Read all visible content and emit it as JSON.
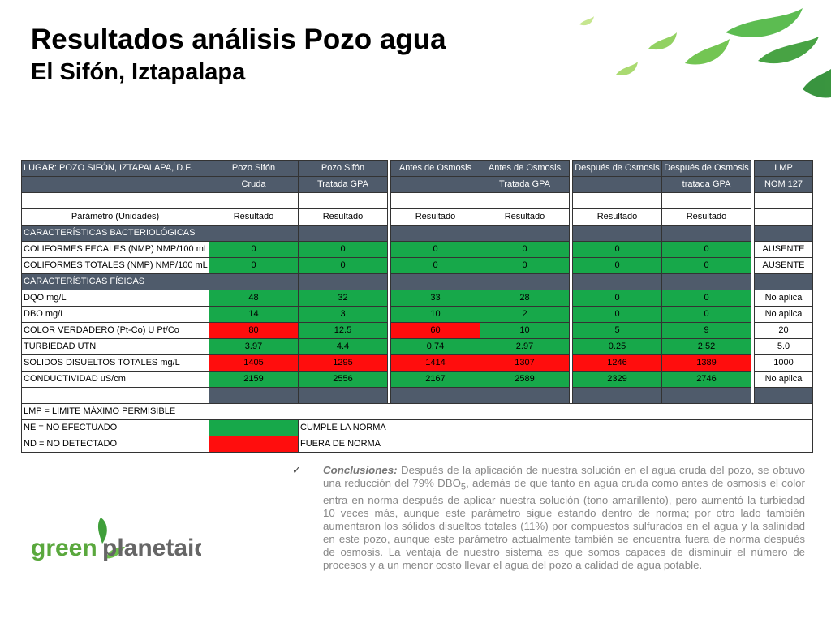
{
  "slide": {
    "title": "Resultados análisis Pozo agua",
    "subtitle": "El Sifón, Iztapalapa"
  },
  "table": {
    "header": {
      "location": "LUGAR: POZO SIFÓN, IZTAPALAPA, D.F.",
      "cols": [
        "Pozo Sifón",
        "Pozo Sifón",
        "Antes de Osmosis",
        "Antes de Osmosis",
        "Después de Osmosis",
        "Después de Osmosis",
        "LMP"
      ],
      "sub": [
        "Cruda",
        "Tratada GPA",
        "",
        "Tratada GPA",
        "",
        "tratada GPA",
        "NOM 127"
      ],
      "param_label": "Parámetro (Unidades)",
      "result_label": "Resultado"
    },
    "sections": {
      "bact": "CARACTERÍSTICAS BACTERIOLÓGICAS",
      "fis": "CARACTERÍSTICAS FÍSICAS"
    },
    "rows": [
      {
        "param": "COLIFORMES FECALES (NMP) NMP/100 mL",
        "values": [
          "0",
          "0",
          "0",
          "0",
          "0",
          "0"
        ],
        "status": [
          "g",
          "g",
          "g",
          "g",
          "g",
          "g"
        ],
        "lmp": "AUSENTE"
      },
      {
        "param": "COLIFORMES TOTALES (NMP) NMP/100 mL",
        "values": [
          "0",
          "0",
          "0",
          "0",
          "0",
          "0"
        ],
        "status": [
          "g",
          "g",
          "g",
          "g",
          "g",
          "g"
        ],
        "lmp": "AUSENTE"
      },
      {
        "param": "DQO mg/L",
        "values": [
          "48",
          "32",
          "33",
          "28",
          "0",
          "0"
        ],
        "status": [
          "g",
          "g",
          "g",
          "g",
          "g",
          "g"
        ],
        "lmp": "No aplica"
      },
      {
        "param": "DBO mg/L",
        "values": [
          "14",
          "3",
          "10",
          "2",
          "0",
          "0"
        ],
        "status": [
          "g",
          "g",
          "g",
          "g",
          "g",
          "g"
        ],
        "lmp": "No aplica"
      },
      {
        "param": "COLOR VERDADERO (Pt-Co) U Pt/Co",
        "values": [
          "80",
          "12.5",
          "60",
          "10",
          "5",
          "9"
        ],
        "status": [
          "r",
          "g",
          "r",
          "g",
          "g",
          "g"
        ],
        "lmp": "20"
      },
      {
        "param": "TURBIEDAD UTN",
        "values": [
          "3.97",
          "4.4",
          "0.74",
          "2.97",
          "0.25",
          "2.52"
        ],
        "status": [
          "g",
          "g",
          "g",
          "g",
          "g",
          "g"
        ],
        "lmp": "5.0"
      },
      {
        "param": "SOLIDOS DISUELTOS TOTALES mg/L",
        "values": [
          "1405",
          "1295",
          "1414",
          "1307",
          "1246",
          "1389"
        ],
        "status": [
          "r",
          "r",
          "r",
          "r",
          "r",
          "r"
        ],
        "lmp": "1000"
      },
      {
        "param": "CONDUCTIVIDAD  uS/cm",
        "values": [
          "2159",
          "2556",
          "2167",
          "2589",
          "2329",
          "2746"
        ],
        "status": [
          "g",
          "g",
          "g",
          "g",
          "g",
          "g"
        ],
        "lmp": "No aplica"
      }
    ],
    "legend": {
      "lmp": "LMP = LIMITE MÁXIMO PERMISIBLE",
      "ne": "NE = NO EFECTUADO",
      "nd": "ND = NO DETECTADO",
      "green": "CUMPLE LA NORMA",
      "red": "FUERA DE NORMA"
    },
    "colors": {
      "green": "#17a84a",
      "red": "#ff0d0d",
      "header": "#4f5b6b"
    }
  },
  "logo": {
    "text_green": "green",
    "text_planet": "planetaid"
  },
  "conclusion": {
    "lead": "Conclusiones:",
    "text_a": " Después de la aplicación de nuestra solución en el agua cruda del pozo, se obtuvo una reducción del 79% DBO",
    "sub": "5",
    "text_b": ", además de que tanto en agua cruda como antes de osmosis el color entra en norma después de aplicar nuestra solución (tono amarillento), pero aumentó la turbiedad 10 veces más, aunque este parámetro sigue estando dentro de norma; por otro lado también aumentaron los sólidos disueltos totales (11%) por compuestos sulfurados en el agua y la salinidad en este pozo, aunque este parámetro actualmente también se encuentra fuera de norma después de osmosis. La ventaja de nuestro sistema es que somos capaces de disminuir el número de procesos y a un menor costo llevar el agua del pozo a calidad de agua potable."
  }
}
